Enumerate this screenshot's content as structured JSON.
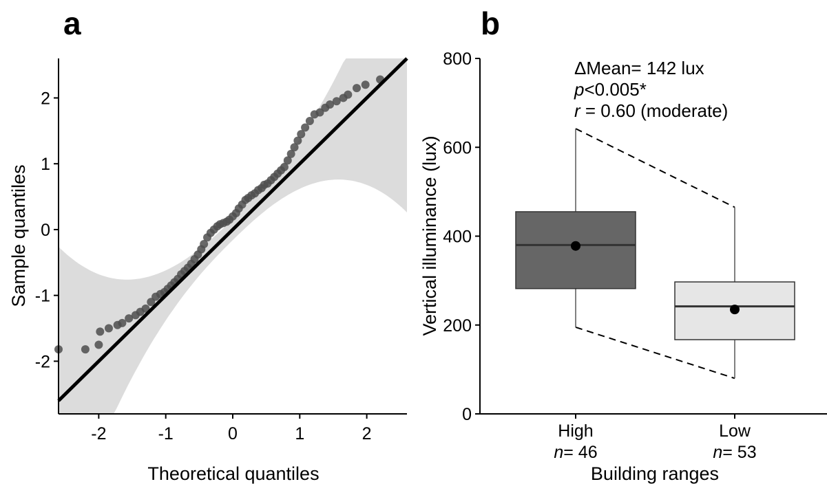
{
  "chart_data": [
    {
      "panel": "a",
      "type": "scatter",
      "xlabel": "Theoretical quantiles",
      "ylabel": "Sample quantiles",
      "xlim": [
        -2.6,
        2.6
      ],
      "ylim": [
        -2.8,
        2.6
      ],
      "x_ticks": [
        -2,
        -1,
        0,
        1,
        2
      ],
      "y_ticks": [
        -2,
        -1,
        0,
        1,
        2
      ],
      "reference_line": {
        "slope": 1,
        "intercept": 0
      },
      "confidence_band": true,
      "x": [
        -2.6,
        -2.2,
        -2.0,
        -1.98,
        -1.85,
        -1.72,
        -1.65,
        -1.55,
        -1.45,
        -1.38,
        -1.3,
        -1.22,
        -1.15,
        -1.08,
        -1.02,
        -0.97,
        -0.92,
        -0.87,
        -0.82,
        -0.77,
        -0.72,
        -0.67,
        -0.62,
        -0.57,
        -0.52,
        -0.47,
        -0.43,
        -0.38,
        -0.33,
        -0.28,
        -0.23,
        -0.19,
        -0.14,
        -0.09,
        -0.05,
        0.0,
        0.05,
        0.09,
        0.14,
        0.19,
        0.23,
        0.28,
        0.33,
        0.38,
        0.43,
        0.47,
        0.52,
        0.57,
        0.62,
        0.67,
        0.72,
        0.77,
        0.82,
        0.87,
        0.92,
        0.97,
        1.02,
        1.08,
        1.15,
        1.22,
        1.3,
        1.38,
        1.45,
        1.55,
        1.65,
        1.72,
        1.85,
        1.98,
        2.2
      ],
      "y": [
        -1.82,
        -1.82,
        -1.75,
        -1.55,
        -1.5,
        -1.45,
        -1.42,
        -1.35,
        -1.3,
        -1.25,
        -1.2,
        -1.1,
        -1.02,
        -0.98,
        -0.95,
        -0.9,
        -0.85,
        -0.8,
        -0.75,
        -0.68,
        -0.63,
        -0.58,
        -0.52,
        -0.45,
        -0.38,
        -0.3,
        -0.22,
        -0.12,
        -0.05,
        0.0,
        0.05,
        0.08,
        0.1,
        0.12,
        0.15,
        0.2,
        0.25,
        0.32,
        0.38,
        0.45,
        0.48,
        0.52,
        0.55,
        0.6,
        0.63,
        0.68,
        0.7,
        0.75,
        0.8,
        0.85,
        0.9,
        0.95,
        1.05,
        1.15,
        1.25,
        1.35,
        1.45,
        1.55,
        1.65,
        1.75,
        1.78,
        1.85,
        1.9,
        1.95,
        2.0,
        2.05,
        2.15,
        2.2,
        2.28
      ]
    },
    {
      "panel": "b",
      "type": "box",
      "xlabel": "Building ranges",
      "ylabel": "Vertical illuminance (lux)",
      "ylim": [
        0,
        800
      ],
      "y_ticks": [
        0,
        200,
        400,
        600,
        800
      ],
      "categories": [
        "High",
        "Low"
      ],
      "n_prefix": "n",
      "n_values": [
        "= 46",
        "= 53"
      ],
      "boxes": [
        {
          "category": "High",
          "min": 195,
          "q1": 282,
          "median": 380,
          "q3": 455,
          "max": 642,
          "mean": 378,
          "color": "#666666"
        },
        {
          "category": "Low",
          "min": 80,
          "q1": 167,
          "median": 242,
          "q3": 297,
          "max": 465,
          "mean": 235,
          "color": "#e6e6e6"
        }
      ],
      "annotation": {
        "line1": "ΔMean= 142 lux",
        "line2_italic": "p",
        "line2_rest": "<0.005*",
        "line3_italic": "r",
        "line3_rest": " = 0.60 (moderate)"
      }
    }
  ],
  "panel_letters": [
    "a",
    "b"
  ]
}
